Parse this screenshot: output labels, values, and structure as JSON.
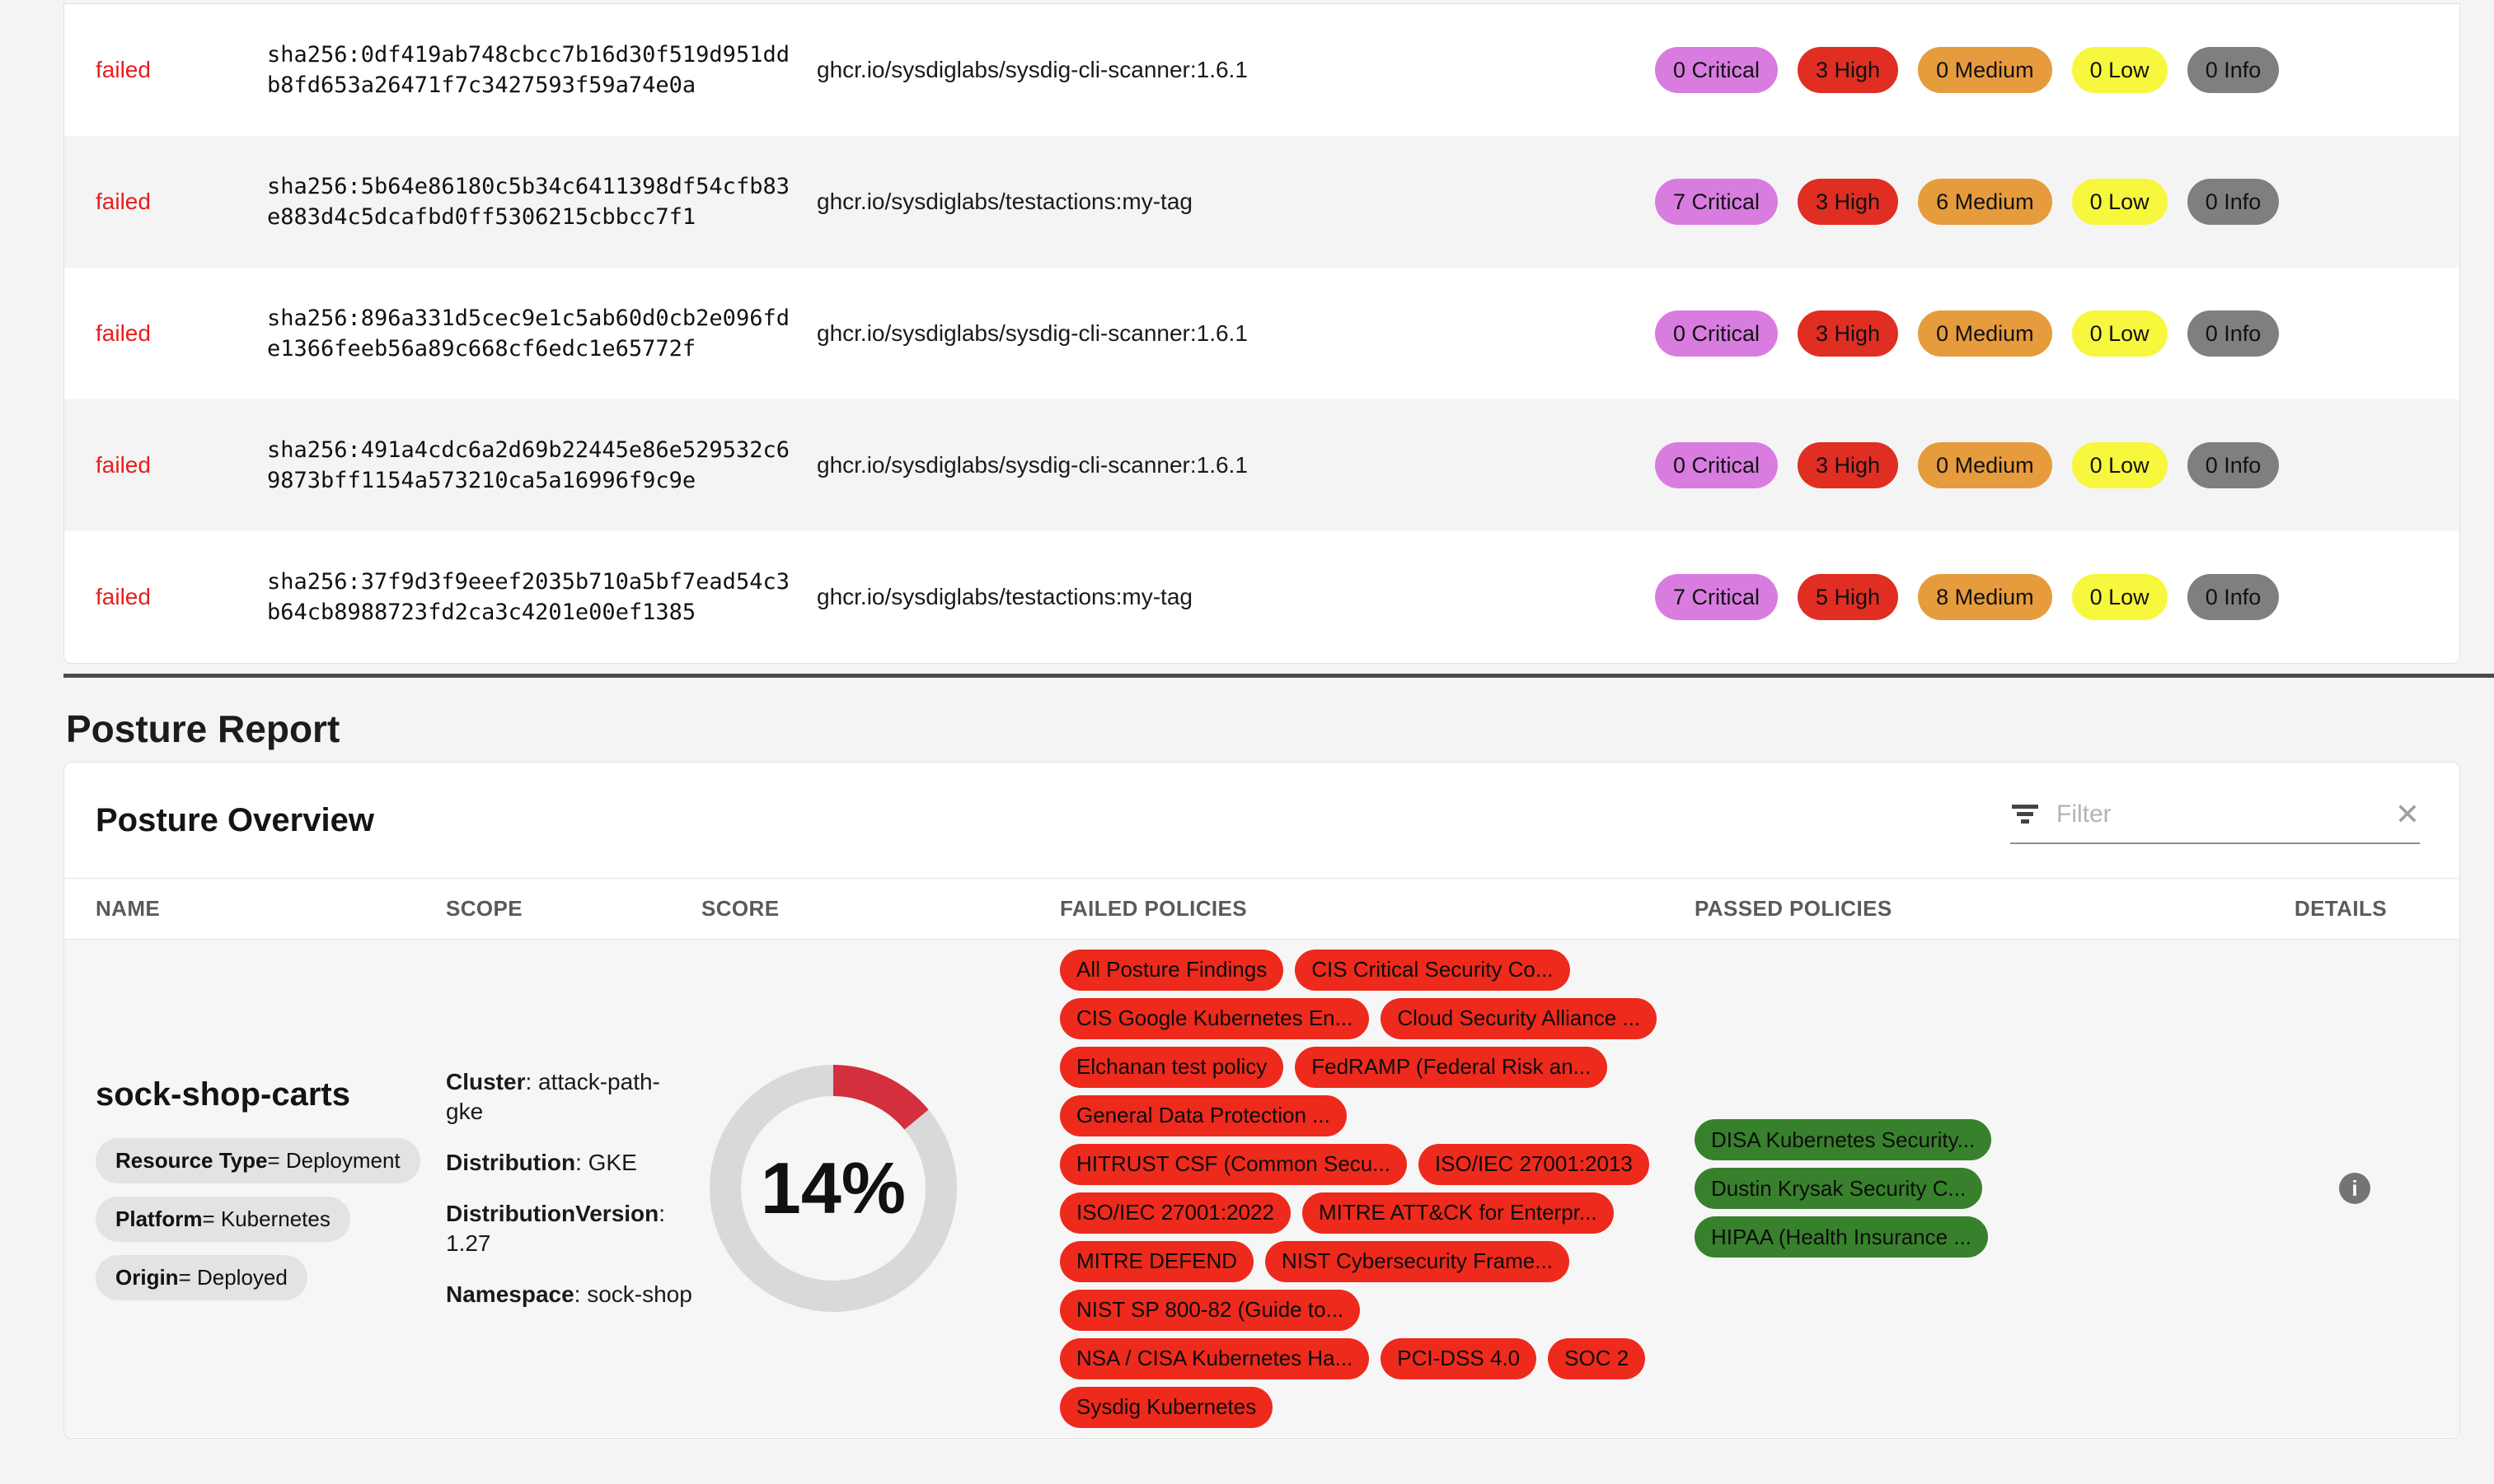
{
  "scan_table": {
    "status_label": "failed",
    "rows": [
      {
        "status": "failed",
        "digest": "sha256:0df419ab748cbcc7b16d30f519d951dd\nb8fd653a26471f7c3427593f59a74e0a",
        "image": "ghcr.io/sysdiglabs/sysdig-cli-scanner:1.6.1",
        "findings": [
          {
            "count": 0,
            "severity": "Critical"
          },
          {
            "count": 3,
            "severity": "High"
          },
          {
            "count": 0,
            "severity": "Medium"
          },
          {
            "count": 0,
            "severity": "Low"
          },
          {
            "count": 0,
            "severity": "Info"
          }
        ]
      },
      {
        "status": "failed",
        "digest": "sha256:5b64e86180c5b34c6411398df54cfb83\ne883d4c5dcafbd0ff5306215cbbcc7f1",
        "image": "ghcr.io/sysdiglabs/testactions:my-tag",
        "findings": [
          {
            "count": 7,
            "severity": "Critical"
          },
          {
            "count": 3,
            "severity": "High"
          },
          {
            "count": 6,
            "severity": "Medium"
          },
          {
            "count": 0,
            "severity": "Low"
          },
          {
            "count": 0,
            "severity": "Info"
          }
        ]
      },
      {
        "status": "failed",
        "digest": "sha256:896a331d5cec9e1c5ab60d0cb2e096fd\ne1366feeb56a89c668cf6edc1e65772f",
        "image": "ghcr.io/sysdiglabs/sysdig-cli-scanner:1.6.1",
        "findings": [
          {
            "count": 0,
            "severity": "Critical"
          },
          {
            "count": 3,
            "severity": "High"
          },
          {
            "count": 0,
            "severity": "Medium"
          },
          {
            "count": 0,
            "severity": "Low"
          },
          {
            "count": 0,
            "severity": "Info"
          }
        ]
      },
      {
        "status": "failed",
        "digest": "sha256:491a4cdc6a2d69b22445e86e529532c6\n9873bff1154a573210ca5a16996f9c9e",
        "image": "ghcr.io/sysdiglabs/sysdig-cli-scanner:1.6.1",
        "findings": [
          {
            "count": 0,
            "severity": "Critical"
          },
          {
            "count": 3,
            "severity": "High"
          },
          {
            "count": 0,
            "severity": "Medium"
          },
          {
            "count": 0,
            "severity": "Low"
          },
          {
            "count": 0,
            "severity": "Info"
          }
        ]
      },
      {
        "status": "failed",
        "digest": "sha256:37f9d3f9eeef2035b710a5bf7ead54c3\nb64cb8988723fd2ca3c4201e00ef1385",
        "image": "ghcr.io/sysdiglabs/testactions:my-tag",
        "findings": [
          {
            "count": 7,
            "severity": "Critical"
          },
          {
            "count": 5,
            "severity": "High"
          },
          {
            "count": 8,
            "severity": "Medium"
          },
          {
            "count": 0,
            "severity": "Low"
          },
          {
            "count": 0,
            "severity": "Info"
          }
        ]
      }
    ]
  },
  "posture_report": {
    "title": "Posture Report",
    "overview": {
      "title": "Posture Overview",
      "filter_placeholder": "Filter",
      "columns": [
        "NAME",
        "SCOPE",
        "SCORE",
        "FAILED POLICIES",
        "PASSED POLICIES",
        "DETAILS"
      ],
      "row": {
        "name": "sock-shop-carts",
        "labels": [
          {
            "key": "Resource Type",
            "value": "Deployment"
          },
          {
            "key": "Platform",
            "value": "Kubernetes"
          },
          {
            "key": "Origin",
            "value": "Deployed"
          }
        ],
        "scope": [
          {
            "label": "Cluster",
            "value": "attack-path-gke"
          },
          {
            "label": "Distribution",
            "value": "GKE"
          },
          {
            "label": "DistributionVersion",
            "value": "1.27"
          },
          {
            "label": "Namespace",
            "value": "sock-shop"
          }
        ],
        "score": {
          "percent": 14,
          "label": "14%"
        },
        "failed_policies": [
          "All Posture Findings",
          "CIS Critical Security Co...",
          "CIS Google Kubernetes En...",
          "Cloud Security Alliance ...",
          "Elchanan test policy",
          "FedRAMP (Federal Risk an...",
          "General Data Protection ...",
          "HITRUST CSF (Common Secu...",
          "ISO/IEC 27001:2013",
          "ISO/IEC 27001:2022",
          "MITRE ATT&CK for Enterpr...",
          "MITRE DEFEND",
          "NIST Cybersecurity Frame...",
          "NIST SP 800-82 (Guide to...",
          "NSA / CISA Kubernetes Ha...",
          "PCI-DSS 4.0",
          "SOC 2",
          "Sysdig Kubernetes"
        ],
        "passed_policies": [
          "DISA Kubernetes Security...",
          "Dustin Krysak Security C...",
          "HIPAA (Health Insurance ..."
        ]
      }
    }
  },
  "icons": {
    "clear_glyph": "✕",
    "info_glyph": "i"
  },
  "colors": {
    "severity_critical": "#d97ce0",
    "severity_high": "#e02e23",
    "severity_medium": "#e69b3d",
    "severity_low": "#f7f73e",
    "severity_info": "#7f7f7f",
    "failed_text": "#e81d1d",
    "failed_policy_pill": "#ed2a1c",
    "passed_policy_pill": "#38812c",
    "score_arc": "#d32f3c",
    "score_track": "#d9d9d9"
  }
}
